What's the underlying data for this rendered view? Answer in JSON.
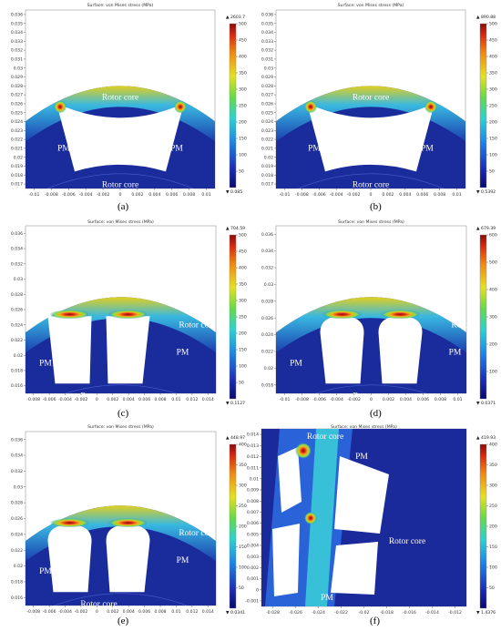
{
  "chart_data": [
    {
      "label": "(a)",
      "title": "Surface: von Mises stress (MPa)",
      "type": "heatmap",
      "xticks": [
        "-0.01",
        "-0.008",
        "-0.006",
        "-0.004",
        "-0.002",
        "0",
        "0.002",
        "0.004",
        "0.006",
        "0.008",
        "0.01"
      ],
      "yticks": [
        "0.036",
        "0.035",
        "0.034",
        "0.033",
        "0.032",
        "0.031",
        "0.03",
        "0.029",
        "0.028",
        "0.027",
        "0.026",
        "0.025",
        "0.024",
        "0.023",
        "0.022",
        "0.021",
        "0.02",
        "0.019",
        "0.018",
        "0.017"
      ],
      "colorbar": {
        "ticks": [
          "500",
          "450",
          "400",
          "350",
          "300",
          "250",
          "200",
          "150",
          "100",
          "50"
        ],
        "max_label": "▲ 2603.7",
        "min_label": "▼ 0.085",
        "max": 500
      },
      "regions": [
        "Rotor core",
        "PM",
        "PM",
        "Rotor core"
      ]
    },
    {
      "label": "(b)",
      "title": "Surface: von Mises stress (MPa)",
      "type": "heatmap",
      "xticks": [
        "-0.01",
        "-0.008",
        "-0.006",
        "-0.004",
        "-0.002",
        "0",
        "0.002",
        "0.004",
        "0.006",
        "0.008",
        "0.01"
      ],
      "yticks": [
        "0.036",
        "0.035",
        "0.034",
        "0.033",
        "0.032",
        "0.031",
        "0.03",
        "0.029",
        "0.028",
        "0.027",
        "0.026",
        "0.025",
        "0.024",
        "0.023",
        "0.022",
        "0.021",
        "0.02",
        "0.019",
        "0.018",
        "0.017"
      ],
      "colorbar": {
        "ticks": [
          "500",
          "450",
          "400",
          "350",
          "300",
          "250",
          "200",
          "150",
          "100",
          "50"
        ],
        "max_label": "▲ 890.88",
        "min_label": "▼ 0.5392",
        "max": 500
      },
      "regions": [
        "Rotor core",
        "PM",
        "PM",
        "Rotor core"
      ]
    },
    {
      "label": "(c)",
      "title": "Surface: von Mises stress (MPa)",
      "type": "heatmap",
      "xticks": [
        "-0.008",
        "-0.006",
        "-0.004",
        "-0.002",
        "0",
        "0.002",
        "0.004",
        "0.006",
        "0.008",
        "0.01",
        "0.012",
        "0.014"
      ],
      "yticks": [
        "0.036",
        "0.034",
        "0.032",
        "0.03",
        "0.028",
        "0.026",
        "0.024",
        "0.022",
        "0.02",
        "0.018",
        "0.016"
      ],
      "colorbar": {
        "ticks": [
          "500",
          "450",
          "400",
          "350",
          "300",
          "250",
          "200",
          "150",
          "100",
          "50"
        ],
        "max_label": "▲ 704.59",
        "min_label": "▼ 0.1127",
        "max": 500
      },
      "regions": [
        "Rotor core",
        "PM",
        "PM",
        "Rotor core"
      ]
    },
    {
      "label": "(d)",
      "title": "Surface: von Mises stress (MPa)",
      "type": "heatmap",
      "xticks": [
        "-0.01",
        "-0.008",
        "-0.006",
        "-0.004",
        "-0.002",
        "0",
        "0.002",
        "0.004",
        "0.006",
        "0.008",
        "0.01"
      ],
      "yticks": [
        "0.036",
        "0.034",
        "0.032",
        "0.03",
        "0.028",
        "0.026",
        "0.024",
        "0.022",
        "0.02",
        "0.018"
      ],
      "colorbar": {
        "ticks": [
          "600",
          "500",
          "400",
          "300",
          "200",
          "100"
        ],
        "max_label": "▲ 679.39",
        "min_label": "▼ 0.0371",
        "max": 600
      },
      "regions": [
        "Rotor core",
        "PM",
        "PM",
        "Rotor core"
      ]
    },
    {
      "label": "(e)",
      "title": "Surface: von Mises stress (MPa)",
      "type": "heatmap",
      "xticks": [
        "-0.008",
        "-0.006",
        "-0.004",
        "-0.002",
        "0",
        "0.002",
        "0.004",
        "0.006",
        "0.008",
        "0.01",
        "0.012",
        "0.014"
      ],
      "yticks": [
        "0.036",
        "0.034",
        "0.032",
        "0.03",
        "0.028",
        "0.026",
        "0.024",
        "0.022",
        "0.02",
        "0.018",
        "0.016"
      ],
      "colorbar": {
        "ticks": [
          "400",
          "350",
          "300",
          "250",
          "200",
          "150",
          "100",
          "50"
        ],
        "max_label": "▲ 448.97",
        "min_label": "▼ 0.0341",
        "max": 400
      },
      "regions": [
        "Rotor core",
        "PM",
        "PM",
        "Rotor core"
      ]
    },
    {
      "label": "(f)",
      "title": "Surface: von Mises stress (MPa)",
      "type": "heatmap",
      "xticks": [
        "-0.028",
        "-0.026",
        "-0.024",
        "-0.022",
        "-0.02",
        "-0.018",
        "-0.016",
        "-0.014",
        "-0.012"
      ],
      "yticks": [
        "0.014",
        "0.013",
        "0.012",
        "0.011",
        "0.01",
        "0.009",
        "0.008",
        "0.007",
        "0.006",
        "0.005",
        "0.004",
        "0.003",
        "0.002",
        "0.001",
        "0",
        "-0.001"
      ],
      "colorbar": {
        "ticks": [
          "400",
          "350",
          "300",
          "250",
          "200",
          "150",
          "100",
          "50"
        ],
        "max_label": "▲ 419.93",
        "min_label": "▼ 1.4376",
        "max": 400
      },
      "regions": [
        "Rotor core",
        "PM",
        "Rotor core",
        "PM"
      ]
    }
  ]
}
